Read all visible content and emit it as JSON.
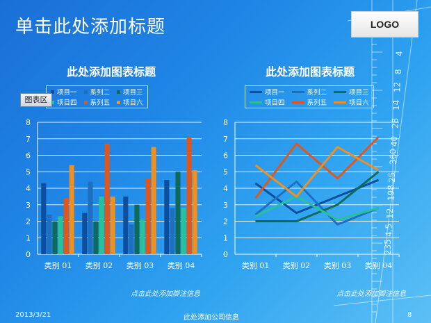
{
  "slide": {
    "title": "单击此处添加标题",
    "logo": "LOGO",
    "footer_date": "2013/3/21",
    "footer_company": "此处添加公司信息",
    "page_number": "8",
    "chart_area_tag": "图表区",
    "ruler_labels": [
      "2",
      "4",
      "8",
      "12",
      "14",
      "28",
      "40",
      "360",
      "25",
      "198",
      "12",
      "4.5",
      "235"
    ]
  },
  "colors": {
    "s1": "#0d4f9e",
    "s2": "#1f6fc0",
    "s3": "#0e6a5a",
    "s4": "#26c39a",
    "s5": "#e2561a",
    "s6": "#ee9022"
  },
  "chart_data": [
    {
      "type": "bar",
      "title": "此处添加图表标题",
      "note": "点击此处添加脚注信息",
      "categories": [
        "类别 01",
        "类别 02",
        "类别 03",
        "类别 04"
      ],
      "ylim": [
        0,
        8
      ],
      "yticks": [
        0,
        1,
        2,
        3,
        4,
        5,
        6,
        7,
        8
      ],
      "grid": true,
      "legend_position": "top",
      "series": [
        {
          "name": "项目一",
          "color_key": "s1",
          "values": [
            4.3,
            2.5,
            3.5,
            4.5
          ]
        },
        {
          "name": "系列二",
          "color_key": "s2",
          "values": [
            2.4,
            4.4,
            1.8,
            2.8
          ]
        },
        {
          "name": "项目三",
          "color_key": "s3",
          "values": [
            2.0,
            2.0,
            3.0,
            5.0
          ]
        },
        {
          "name": "项目四",
          "color_key": "s4",
          "values": [
            2.3,
            3.5,
            2.1,
            2.8
          ]
        },
        {
          "name": "系列五",
          "color_key": "s5",
          "values": [
            3.4,
            6.7,
            4.6,
            7.1
          ]
        },
        {
          "name": "项目六",
          "color_key": "s6",
          "values": [
            5.4,
            3.5,
            6.5,
            5.1
          ]
        }
      ]
    },
    {
      "type": "line",
      "title": "此处添加图表标题",
      "note": "点击此处添加脚注信息",
      "categories": [
        "类别 01",
        "类别 02",
        "类别 03",
        "类别 04"
      ],
      "ylim": [
        0,
        8
      ],
      "yticks": [
        0,
        1,
        2,
        3,
        4,
        5,
        6,
        7,
        8
      ],
      "grid": true,
      "legend_position": "top",
      "series": [
        {
          "name": "项目一",
          "color_key": "s1",
          "values": [
            4.3,
            2.5,
            3.5,
            4.5
          ]
        },
        {
          "name": "系列二",
          "color_key": "s2",
          "values": [
            2.4,
            4.4,
            1.8,
            2.8
          ]
        },
        {
          "name": "项目三",
          "color_key": "s3",
          "values": [
            2.0,
            2.0,
            3.0,
            5.0
          ]
        },
        {
          "name": "项目四",
          "color_key": "s4",
          "values": [
            2.3,
            3.5,
            2.1,
            2.8
          ]
        },
        {
          "name": "系列五",
          "color_key": "s5",
          "values": [
            3.4,
            6.7,
            4.6,
            7.1
          ]
        },
        {
          "name": "项目六",
          "color_key": "s6",
          "values": [
            5.4,
            3.5,
            6.5,
            5.1
          ]
        }
      ]
    }
  ]
}
